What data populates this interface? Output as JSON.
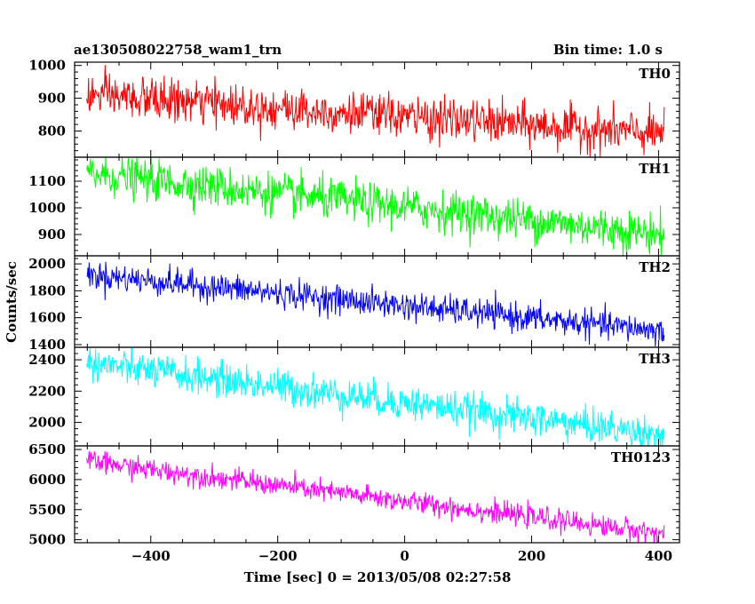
{
  "title_left": "ae130508022758_wam1_trn",
  "title_right": "Bin time: 1.0 s",
  "ylabel": "Counts/sec",
  "xlabel": "Time [sec] 0 = 2013/05/08 02:27:58",
  "chart_data": {
    "type": "line",
    "x_range": [
      -501,
      409
    ],
    "xlim": [
      -520,
      433
    ],
    "x_ticks": [
      -400,
      -200,
      0,
      200,
      400
    ],
    "x_ticklabels": [
      "−400",
      "−200",
      "0",
      "200",
      "400"
    ],
    "xlabel": "Time [sec] 0 = 2013/05/08 02:27:58",
    "ylabel": "Counts/sec",
    "bin_time": "1.0 s",
    "panels": [
      {
        "name": "TH0",
        "color": "#ff0000",
        "ylim": [
          720,
          1010
        ],
        "y_ticks": [
          800,
          900,
          1000
        ],
        "y_ticklabels": [
          "800",
          "900",
          "1000"
        ],
        "trend_start": 910,
        "trend_end": 790,
        "noise_sd": 32
      },
      {
        "name": "TH1",
        "color": "#00ff00",
        "ylim": [
          820,
          1190
        ],
        "y_ticks": [
          900,
          1000,
          1100
        ],
        "y_ticklabels": [
          "900",
          "1000",
          "1100"
        ],
        "trend_start": 1130,
        "trend_end": 900,
        "noise_sd": 38
      },
      {
        "name": "TH2",
        "color": "#0000ff",
        "ylim": [
          1380,
          2060
        ],
        "y_ticks": [
          1400,
          1600,
          1800,
          2000
        ],
        "y_ticklabels": [
          "1400",
          "1600",
          "1800",
          "2000"
        ],
        "trend_start": 1920,
        "trend_end": 1500,
        "noise_sd": 52
      },
      {
        "name": "TH3",
        "color": "#00ffff",
        "ylim": [
          1850,
          2480
        ],
        "y_ticks": [
          2000,
          2200,
          2400
        ],
        "y_ticklabels": [
          "2000",
          "2200",
          "2400"
        ],
        "trend_start": 2380,
        "trend_end": 1920,
        "noise_sd": 55
      },
      {
        "name": "TH0123",
        "color": "#ff00ff",
        "ylim": [
          4950,
          6560
        ],
        "y_ticks": [
          5000,
          5500,
          6000,
          6500
        ],
        "y_ticklabels": [
          "5000",
          "5500",
          "6000",
          "6500"
        ],
        "trend_start": 6300,
        "trend_end": 5100,
        "noise_sd": 90
      }
    ]
  }
}
